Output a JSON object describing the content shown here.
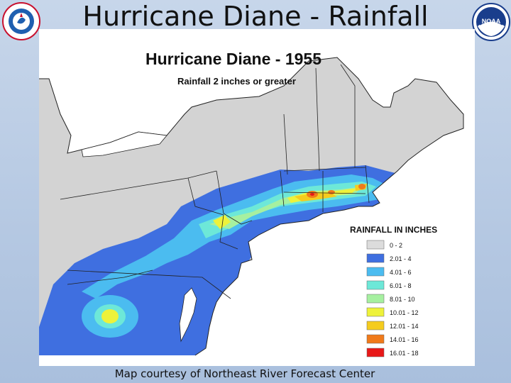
{
  "slide": {
    "title": "Hurricane Diane - Rainfall",
    "caption": "Map courtesy of Northeast River Forecast Center"
  },
  "logos": {
    "left": {
      "icon": "nws-logo-icon",
      "text": "NATIONAL WEATHER SERVICE"
    },
    "right": {
      "icon": "noaa-logo-icon",
      "text": "NOAA"
    }
  },
  "map": {
    "title": "Hurricane Diane - 1955",
    "subtitle": "Rainfall 2 inches or greater",
    "legend": {
      "title": "RAINFALL IN INCHES",
      "items": [
        {
          "label": "0 - 2",
          "color": "#dcdcdc"
        },
        {
          "label": "2.01 - 4",
          "color": "#3f6fe0"
        },
        {
          "label": "4.01 - 6",
          "color": "#4bbcf0"
        },
        {
          "label": "6.01 - 8",
          "color": "#6de8d8"
        },
        {
          "label": "8.01 - 10",
          "color": "#a6f0a0"
        },
        {
          "label": "10.01 - 12",
          "color": "#eef23a"
        },
        {
          "label": "12.01 - 14",
          "color": "#f5cc1e"
        },
        {
          "label": "14.01 - 16",
          "color": "#f07a1a"
        },
        {
          "label": "16.01 - 18",
          "color": "#e81818"
        }
      ]
    },
    "colors": {
      "ocean": "#ffffff",
      "land": "#d3d3d3",
      "border": "#222222"
    }
  }
}
